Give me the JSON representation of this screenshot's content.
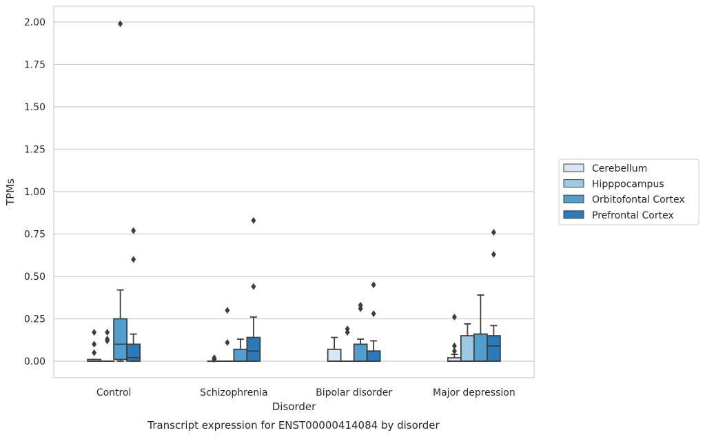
{
  "chart_data": {
    "type": "box",
    "title": "Transcript expression for ENST00000414084 by disorder",
    "xlabel": "Disorder",
    "ylabel": "TPMs",
    "ylim": [
      -0.1,
      2.1
    ],
    "yticks": [
      "0.00",
      "0.25",
      "0.50",
      "0.75",
      "1.00",
      "1.25",
      "1.50",
      "1.75",
      "2.00"
    ],
    "categories": [
      "Control",
      "Schizophrenia",
      "Bipolar disorder",
      "Major depression"
    ],
    "grid": true,
    "legend_position": "right",
    "series": [
      {
        "name": "Cerebellum",
        "color": "#d6e6f4",
        "boxes": [
          {
            "q1": 0.0,
            "median": 0.0,
            "q3": 0.01,
            "whisker_low": 0.0,
            "whisker_high": 0.01,
            "outliers": [
              0.05,
              0.1,
              0.17
            ]
          },
          {
            "q1": 0.0,
            "median": 0.0,
            "q3": 0.0,
            "whisker_low": 0.0,
            "whisker_high": 0.0,
            "outliers": [
              0.01,
              0.02
            ]
          },
          {
            "q1": 0.0,
            "median": 0.0,
            "q3": 0.07,
            "whisker_low": 0.0,
            "whisker_high": 0.14,
            "outliers": []
          },
          {
            "q1": 0.0,
            "median": 0.0,
            "q3": 0.02,
            "whisker_low": 0.0,
            "whisker_high": 0.04,
            "outliers": [
              0.06,
              0.09,
              0.26
            ]
          }
        ]
      },
      {
        "name": "Hipppocampus",
        "color": "#9ec9e2",
        "boxes": [
          {
            "q1": 0.0,
            "median": 0.0,
            "q3": 0.0,
            "whisker_low": 0.0,
            "whisker_high": 0.0,
            "outliers": [
              0.12,
              0.13,
              0.17
            ]
          },
          {
            "q1": 0.0,
            "median": 0.0,
            "q3": 0.0,
            "whisker_low": 0.0,
            "whisker_high": 0.0,
            "outliers": [
              0.11,
              0.3
            ]
          },
          {
            "q1": 0.0,
            "median": 0.0,
            "q3": 0.0,
            "whisker_low": 0.0,
            "whisker_high": 0.0,
            "outliers": [
              0.17,
              0.19
            ]
          },
          {
            "q1": 0.0,
            "median": 0.0,
            "q3": 0.15,
            "whisker_low": 0.0,
            "whisker_high": 0.22,
            "outliers": []
          }
        ]
      },
      {
        "name": "Orbitofontal Cortex",
        "color": "#539ecd",
        "boxes": [
          {
            "q1": 0.01,
            "median": 0.1,
            "q3": 0.25,
            "whisker_low": 0.0,
            "whisker_high": 0.42,
            "outliers": [
              1.99
            ]
          },
          {
            "q1": 0.0,
            "median": 0.0,
            "q3": 0.07,
            "whisker_low": 0.0,
            "whisker_high": 0.13,
            "outliers": []
          },
          {
            "q1": 0.0,
            "median": 0.0,
            "q3": 0.1,
            "whisker_low": 0.0,
            "whisker_high": 0.13,
            "outliers": [
              0.31,
              0.33
            ]
          },
          {
            "q1": 0.0,
            "median": 0.0,
            "q3": 0.16,
            "whisker_low": 0.0,
            "whisker_high": 0.39,
            "outliers": []
          }
        ]
      },
      {
        "name": "Prefrontal Cortex",
        "color": "#2b7bba",
        "boxes": [
          {
            "q1": 0.0,
            "median": 0.02,
            "q3": 0.1,
            "whisker_low": 0.0,
            "whisker_high": 0.16,
            "outliers": [
              0.6,
              0.77
            ]
          },
          {
            "q1": 0.0,
            "median": 0.06,
            "q3": 0.14,
            "whisker_low": 0.0,
            "whisker_high": 0.26,
            "outliers": [
              0.44,
              0.83
            ]
          },
          {
            "q1": 0.0,
            "median": 0.0,
            "q3": 0.06,
            "whisker_low": 0.0,
            "whisker_high": 0.12,
            "outliers": [
              0.28,
              0.45
            ]
          },
          {
            "q1": 0.0,
            "median": 0.09,
            "q3": 0.15,
            "whisker_low": 0.0,
            "whisker_high": 0.21,
            "outliers": [
              0.63,
              0.76
            ]
          }
        ]
      }
    ]
  }
}
